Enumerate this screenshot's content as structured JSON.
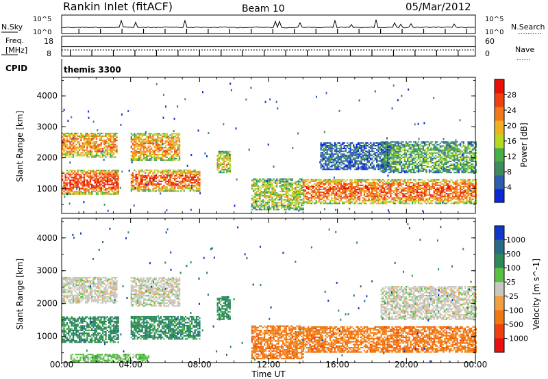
{
  "header": {
    "station": "Rankin Inlet (fitACF)",
    "beam": "Beam 10",
    "date": "05/Mar/2012"
  },
  "noise_panel": {
    "left_label": "N.Sky",
    "right_label": "N.Search",
    "left_ticks": [
      "10^5",
      "10^0"
    ],
    "right_ticks": [
      "10^5",
      "10^0"
    ]
  },
  "freq_panel": {
    "left_label_1": "Freq.",
    "left_label_2": "[MHz]",
    "right_label": "Nave",
    "left_ticks": [
      "18",
      "8"
    ],
    "right_ticks": [
      "60",
      "0"
    ]
  },
  "cpid": {
    "label": "CPID",
    "program": "themis 3300"
  },
  "colors": {
    "power_scale": [
      "#0a28d8",
      "#2c5fb0",
      "#3f8a60",
      "#46b046",
      "#b8d820",
      "#f0b020",
      "#f07818",
      "#ee4010",
      "#e81008"
    ],
    "velocity_scale": [
      "#1038c8",
      "#2a6a88",
      "#2a8a5a",
      "#58c040",
      "#c8c8c0",
      "#f0a040",
      "#f07810",
      "#f04010",
      "#e81010"
    ],
    "axis": "#000000"
  },
  "chart_data": [
    {
      "type": "heatmap",
      "title": "Power",
      "xlabel": "Time UT",
      "ylabel": "Slant Range [km]",
      "x_ticks": [
        "00:00",
        "04:00",
        "08:00",
        "12:00",
        "16:00",
        "20:00",
        "00:00"
      ],
      "xlim_hours": [
        0,
        24
      ],
      "ylim": [
        200,
        4600
      ],
      "y_ticks": [
        1000,
        2000,
        3000,
        4000
      ],
      "colorbar": {
        "label": "Power [dB]",
        "ticks": [
          4,
          8,
          12,
          16,
          20,
          24,
          28
        ],
        "range": [
          0,
          32
        ]
      },
      "regions": [
        {
          "t": [
            0.0,
            3.2
          ],
          "r": [
            2000,
            2800
          ],
          "level": 0.72
        },
        {
          "t": [
            0.0,
            3.3
          ],
          "r": [
            800,
            1600
          ],
          "level": 0.88
        },
        {
          "t": [
            4.0,
            6.8
          ],
          "r": [
            1900,
            2800
          ],
          "level": 0.7
        },
        {
          "t": [
            4.0,
            8.0
          ],
          "r": [
            900,
            1600
          ],
          "level": 0.82
        },
        {
          "t": [
            9.0,
            9.8
          ],
          "r": [
            1500,
            2200
          ],
          "level": 0.55
        },
        {
          "t": [
            11.0,
            14.0
          ],
          "r": [
            300,
            1300
          ],
          "level": 0.5
        },
        {
          "t": [
            14.0,
            24.0
          ],
          "r": [
            500,
            1300
          ],
          "level": 0.8
        },
        {
          "t": [
            18.5,
            24.0
          ],
          "r": [
            1500,
            2500
          ],
          "level": 0.35
        },
        {
          "t": [
            15.0,
            19.0
          ],
          "r": [
            1600,
            2500
          ],
          "level": 0.15
        }
      ]
    },
    {
      "type": "heatmap",
      "title": "Velocity",
      "xlabel": "Time UT",
      "ylabel": "Slant Range [km]",
      "x_ticks": [
        "00:00",
        "04:00",
        "08:00",
        "12:00",
        "16:00",
        "20:00",
        "00:00"
      ],
      "xlim_hours": [
        0,
        24
      ],
      "ylim": [
        200,
        4600
      ],
      "y_ticks": [
        1000,
        2000,
        3000,
        4000
      ],
      "colorbar": {
        "label": "Velocity [m s^-1]",
        "ticks": [
          "1000",
          "500",
          "100",
          "25",
          "-25",
          "-100",
          "-500",
          "-1000"
        ]
      },
      "regions": [
        {
          "t": [
            0.0,
            3.2
          ],
          "r": [
            2000,
            2800
          ],
          "level": 4
        },
        {
          "t": [
            0.0,
            3.3
          ],
          "r": [
            800,
            1600
          ],
          "level": 2
        },
        {
          "t": [
            4.0,
            6.8
          ],
          "r": [
            1900,
            2800
          ],
          "level": 4
        },
        {
          "t": [
            4.0,
            8.0
          ],
          "r": [
            900,
            1600
          ],
          "level": 2
        },
        {
          "t": [
            9.0,
            9.8
          ],
          "r": [
            1500,
            2200
          ],
          "level": 2
        },
        {
          "t": [
            11.0,
            14.0
          ],
          "r": [
            300,
            1300
          ],
          "level": 6
        },
        {
          "t": [
            14.0,
            24.0
          ],
          "r": [
            500,
            1300
          ],
          "level": 6
        },
        {
          "t": [
            18.5,
            24.0
          ],
          "r": [
            1500,
            2500
          ],
          "level": 4
        },
        {
          "t": [
            0.5,
            5.0
          ],
          "r": [
            200,
            450
          ],
          "level": 3
        }
      ]
    }
  ]
}
